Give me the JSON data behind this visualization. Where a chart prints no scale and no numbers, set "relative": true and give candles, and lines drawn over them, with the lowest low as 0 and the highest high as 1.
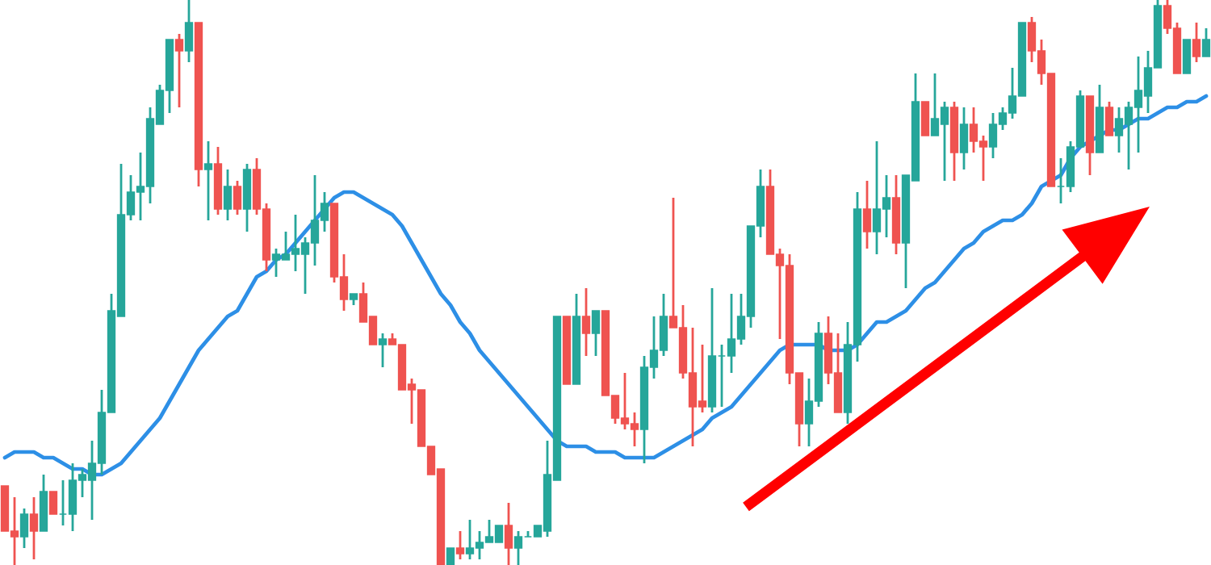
{
  "chart_data": {
    "type": "candlestick",
    "relative": true,
    "tick_labels": false,
    "categories": [
      null,
      null,
      null,
      null,
      null,
      null,
      null,
      null,
      null,
      null,
      null,
      null,
      null,
      null,
      null,
      null,
      null,
      null,
      null,
      null,
      null,
      null,
      null,
      null,
      null,
      null,
      null,
      null,
      null,
      null,
      null,
      null,
      null,
      null,
      null,
      null,
      null,
      null,
      null,
      null,
      null,
      null,
      null,
      null,
      null,
      null,
      null,
      null,
      null,
      null,
      null,
      null,
      null,
      null,
      null,
      null,
      null,
      null,
      null,
      null,
      null,
      null,
      null,
      null,
      null,
      null,
      null,
      null,
      null,
      null,
      null,
      null,
      null,
      null,
      null,
      null,
      null,
      null,
      null,
      null,
      null,
      null,
      null,
      null,
      null,
      null,
      null,
      null,
      null,
      null,
      null,
      null,
      null,
      null,
      null,
      null,
      null,
      null,
      null,
      null,
      null,
      null,
      null,
      null,
      null,
      null,
      null,
      null,
      null,
      null,
      null,
      null,
      null,
      null,
      null,
      null,
      null,
      null,
      null,
      null,
      null,
      null,
      null,
      null,
      null
    ],
    "ohlc": [
      [
        0.14,
        0.14,
        0.06,
        0.06
      ],
      [
        0.06,
        0.12,
        0.0,
        0.05
      ],
      [
        0.05,
        0.1,
        0.03,
        0.09
      ],
      [
        0.09,
        0.12,
        0.01,
        0.06
      ],
      [
        0.06,
        0.16,
        0.06,
        0.13
      ],
      [
        0.13,
        0.13,
        0.09,
        0.09
      ],
      [
        0.09,
        0.15,
        0.07,
        0.09
      ],
      [
        0.09,
        0.18,
        0.06,
        0.15
      ],
      [
        0.15,
        0.17,
        0.12,
        0.16
      ],
      [
        0.15,
        0.22,
        0.08,
        0.18
      ],
      [
        0.18,
        0.31,
        0.16,
        0.27
      ],
      [
        0.27,
        0.48,
        0.27,
        0.45
      ],
      [
        0.44,
        0.71,
        0.44,
        0.62
      ],
      [
        0.62,
        0.69,
        0.61,
        0.66
      ],
      [
        0.66,
        0.73,
        0.61,
        0.67
      ],
      [
        0.67,
        0.81,
        0.64,
        0.79
      ],
      [
        0.78,
        0.85,
        0.78,
        0.84
      ],
      [
        0.84,
        0.93,
        0.8,
        0.93
      ],
      [
        0.93,
        0.94,
        0.81,
        0.91
      ],
      [
        0.91,
        1.0,
        0.89,
        0.96
      ],
      [
        0.96,
        0.96,
        0.67,
        0.7
      ],
      [
        0.7,
        0.75,
        0.61,
        0.71
      ],
      [
        0.71,
        0.74,
        0.62,
        0.63
      ],
      [
        0.63,
        0.7,
        0.61,
        0.67
      ],
      [
        0.67,
        0.68,
        0.62,
        0.63
      ],
      [
        0.63,
        0.71,
        0.59,
        0.7
      ],
      [
        0.7,
        0.72,
        0.62,
        0.63
      ],
      [
        0.63,
        0.64,
        0.52,
        0.54
      ],
      [
        0.54,
        0.56,
        0.51,
        0.55
      ],
      [
        0.54,
        0.59,
        0.54,
        0.55
      ],
      [
        0.55,
        0.62,
        0.52,
        0.56
      ],
      [
        0.55,
        0.58,
        0.48,
        0.57
      ],
      [
        0.57,
        0.69,
        0.53,
        0.61
      ],
      [
        0.61,
        0.66,
        0.59,
        0.64
      ],
      [
        0.64,
        0.64,
        0.5,
        0.51
      ],
      [
        0.51,
        0.55,
        0.45,
        0.47
      ],
      [
        0.47,
        0.48,
        0.46,
        0.48
      ],
      [
        0.48,
        0.5,
        0.43,
        0.43
      ],
      [
        0.44,
        0.44,
        0.39,
        0.39
      ],
      [
        0.39,
        0.41,
        0.35,
        0.4
      ],
      [
        0.4,
        0.41,
        0.39,
        0.39
      ],
      [
        0.39,
        0.39,
        0.31,
        0.31
      ],
      [
        0.32,
        0.33,
        0.25,
        0.31
      ],
      [
        0.31,
        0.31,
        0.21,
        0.21
      ],
      [
        0.21,
        0.21,
        0.16,
        0.16
      ],
      [
        0.17,
        0.17,
        0.0,
        0.0
      ],
      [
        0.0,
        0.03,
        0.0,
        0.03
      ],
      [
        0.03,
        0.06,
        0.01,
        0.02
      ],
      [
        0.02,
        0.08,
        0.01,
        0.03
      ],
      [
        0.03,
        0.06,
        0.01,
        0.04
      ],
      [
        0.04,
        0.08,
        0.04,
        0.05
      ],
      [
        0.04,
        0.07,
        0.04,
        0.07
      ],
      [
        0.07,
        0.11,
        0.0,
        0.03
      ],
      [
        0.03,
        0.06,
        0.0,
        0.05
      ],
      [
        0.05,
        0.06,
        0.05,
        0.05
      ],
      [
        0.05,
        0.07,
        0.05,
        0.07
      ],
      [
        0.06,
        0.22,
        0.05,
        0.16
      ],
      [
        0.15,
        0.44,
        0.15,
        0.44
      ],
      [
        0.44,
        0.44,
        0.32,
        0.32
      ],
      [
        0.32,
        0.48,
        0.32,
        0.44
      ],
      [
        0.44,
        0.49,
        0.37,
        0.41
      ],
      [
        0.41,
        0.45,
        0.37,
        0.45
      ],
      [
        0.45,
        0.45,
        0.3,
        0.3
      ],
      [
        0.3,
        0.3,
        0.25,
        0.26
      ],
      [
        0.26,
        0.34,
        0.24,
        0.25
      ],
      [
        0.25,
        0.27,
        0.21,
        0.24
      ],
      [
        0.24,
        0.37,
        0.18,
        0.35
      ],
      [
        0.35,
        0.44,
        0.33,
        0.38
      ],
      [
        0.38,
        0.48,
        0.37,
        0.44
      ],
      [
        0.44,
        0.65,
        0.42,
        0.42
      ],
      [
        0.42,
        0.46,
        0.33,
        0.34
      ],
      [
        0.34,
        0.42,
        0.21,
        0.28
      ],
      [
        0.29,
        0.39,
        0.27,
        0.28
      ],
      [
        0.28,
        0.49,
        0.27,
        0.37
      ],
      [
        0.37,
        0.39,
        0.28,
        0.37
      ],
      [
        0.37,
        0.48,
        0.34,
        0.4
      ],
      [
        0.4,
        0.48,
        0.39,
        0.44
      ],
      [
        0.44,
        0.6,
        0.42,
        0.6
      ],
      [
        0.6,
        0.7,
        0.58,
        0.67
      ],
      [
        0.67,
        0.7,
        0.55,
        0.55
      ],
      [
        0.55,
        0.56,
        0.4,
        0.53
      ],
      [
        0.53,
        0.55,
        0.32,
        0.34
      ],
      [
        0.34,
        0.34,
        0.21,
        0.25
      ],
      [
        0.25,
        0.33,
        0.21,
        0.29
      ],
      [
        0.29,
        0.43,
        0.28,
        0.41
      ],
      [
        0.41,
        0.44,
        0.32,
        0.34
      ],
      [
        0.34,
        0.41,
        0.27,
        0.27
      ],
      [
        0.27,
        0.43,
        0.25,
        0.39
      ],
      [
        0.39,
        0.66,
        0.36,
        0.63
      ],
      [
        0.63,
        0.68,
        0.56,
        0.59
      ],
      [
        0.59,
        0.75,
        0.55,
        0.63
      ],
      [
        0.63,
        0.69,
        0.58,
        0.65
      ],
      [
        0.65,
        0.69,
        0.55,
        0.57
      ],
      [
        0.57,
        0.69,
        0.49,
        0.69
      ],
      [
        0.68,
        0.87,
        0.68,
        0.82
      ],
      [
        0.82,
        0.82,
        0.76,
        0.76
      ],
      [
        0.76,
        0.87,
        0.76,
        0.79
      ],
      [
        0.78,
        0.82,
        0.68,
        0.81
      ],
      [
        0.81,
        0.82,
        0.68,
        0.73
      ],
      [
        0.73,
        0.81,
        0.7,
        0.78
      ],
      [
        0.78,
        0.81,
        0.73,
        0.75
      ],
      [
        0.75,
        0.76,
        0.68,
        0.74
      ],
      [
        0.74,
        0.8,
        0.72,
        0.78
      ],
      [
        0.78,
        0.81,
        0.77,
        0.8
      ],
      [
        0.8,
        0.88,
        0.79,
        0.83
      ],
      [
        0.83,
        0.96,
        0.83,
        0.96
      ],
      [
        0.96,
        0.97,
        0.89,
        0.91
      ],
      [
        0.91,
        0.93,
        0.85,
        0.87
      ],
      [
        0.87,
        0.87,
        0.67,
        0.67
      ],
      [
        0.67,
        0.72,
        0.64,
        0.67
      ],
      [
        0.67,
        0.75,
        0.66,
        0.74
      ],
      [
        0.74,
        0.84,
        0.74,
        0.83
      ],
      [
        0.83,
        0.83,
        0.69,
        0.73
      ],
      [
        0.73,
        0.85,
        0.73,
        0.81
      ],
      [
        0.81,
        0.82,
        0.76,
        0.76
      ],
      [
        0.76,
        0.81,
        0.73,
        0.79
      ],
      [
        0.78,
        0.82,
        0.7,
        0.81
      ],
      [
        0.81,
        0.9,
        0.73,
        0.84
      ],
      [
        0.83,
        0.91,
        0.8,
        0.88
      ],
      [
        0.88,
        1.0,
        0.88,
        0.99
      ],
      [
        0.99,
        1.0,
        0.94,
        0.95
      ],
      [
        0.95,
        0.96,
        0.87,
        0.87
      ],
      [
        0.87,
        0.93,
        0.87,
        0.93
      ],
      [
        0.93,
        0.96,
        0.89,
        0.9
      ],
      [
        0.9,
        0.95,
        0.9,
        0.93
      ]
    ],
    "colors": [
      "#ef5350",
      "#ef5350",
      "#26a69a",
      "#ef5350",
      "#26a69a",
      "#ef5350",
      "#26a69a",
      "#26a69a",
      "#26a69a",
      "#26a69a",
      "#26a69a",
      "#26a69a",
      "#26a69a",
      "#26a69a",
      "#26a69a",
      "#26a69a",
      "#26a69a",
      "#26a69a",
      "#ef5350",
      "#26a69a",
      "#ef5350",
      "#26a69a",
      "#ef5350",
      "#26a69a",
      "#ef5350",
      "#26a69a",
      "#ef5350",
      "#ef5350",
      "#26a69a",
      "#26a69a",
      "#26a69a",
      "#26a69a",
      "#26a69a",
      "#26a69a",
      "#ef5350",
      "#ef5350",
      "#26a69a",
      "#ef5350",
      "#ef5350",
      "#26a69a",
      "#ef5350",
      "#ef5350",
      "#ef5350",
      "#ef5350",
      "#ef5350",
      "#ef5350",
      "#26a69a",
      "#ef5350",
      "#26a69a",
      "#26a69a",
      "#26a69a",
      "#26a69a",
      "#ef5350",
      "#26a69a",
      "#26a69a",
      "#26a69a",
      "#26a69a",
      "#26a69a",
      "#ef5350",
      "#26a69a",
      "#ef5350",
      "#26a69a",
      "#ef5350",
      "#ef5350",
      "#ef5350",
      "#ef5350",
      "#26a69a",
      "#26a69a",
      "#26a69a",
      "#ef5350",
      "#ef5350",
      "#ef5350",
      "#ef5350",
      "#26a69a",
      "#26a69a",
      "#26a69a",
      "#26a69a",
      "#26a69a",
      "#26a69a",
      "#ef5350",
      "#ef5350",
      "#ef5350",
      "#ef5350",
      "#26a69a",
      "#26a69a",
      "#ef5350",
      "#ef5350",
      "#26a69a",
      "#26a69a",
      "#ef5350",
      "#26a69a",
      "#26a69a",
      "#ef5350",
      "#26a69a",
      "#26a69a",
      "#ef5350",
      "#26a69a",
      "#26a69a",
      "#ef5350",
      "#26a69a",
      "#ef5350",
      "#ef5350",
      "#26a69a",
      "#26a69a",
      "#26a69a",
      "#26a69a",
      "#ef5350",
      "#ef5350",
      "#ef5350",
      "#26a69a",
      "#26a69a",
      "#26a69a",
      "#ef5350",
      "#26a69a",
      "#ef5350",
      "#26a69a",
      "#26a69a",
      "#26a69a",
      "#26a69a",
      "#26a69a",
      "#ef5350",
      "#ef5350",
      "#26a69a",
      "#ef5350",
      "#26a69a"
    ],
    "series": [
      {
        "type": "line",
        "color": "#2d8fe6",
        "values": [
          0.19,
          0.2,
          0.2,
          0.2,
          0.19,
          0.19,
          0.18,
          0.17,
          0.17,
          0.16,
          0.16,
          0.17,
          0.18,
          0.2,
          0.22,
          0.24,
          0.26,
          0.29,
          0.32,
          0.35,
          0.38,
          0.4,
          0.42,
          0.44,
          0.45,
          0.48,
          0.51,
          0.52,
          0.54,
          0.55,
          0.57,
          0.59,
          0.61,
          0.63,
          0.65,
          0.66,
          0.66,
          0.65,
          0.64,
          0.63,
          0.62,
          0.6,
          0.57,
          0.54,
          0.51,
          0.48,
          0.46,
          0.43,
          0.41,
          0.38,
          0.36,
          0.34,
          0.32,
          0.3,
          0.28,
          0.26,
          0.24,
          0.22,
          0.21,
          0.21,
          0.21,
          0.2,
          0.2,
          0.2,
          0.19,
          0.19,
          0.19,
          0.19,
          0.2,
          0.21,
          0.22,
          0.23,
          0.24,
          0.26,
          0.27,
          0.28,
          0.3,
          0.32,
          0.34,
          0.36,
          0.38,
          0.39,
          0.39,
          0.39,
          0.39,
          0.38,
          0.38,
          0.38,
          0.39,
          0.41,
          0.43,
          0.43,
          0.44,
          0.45,
          0.47,
          0.49,
          0.5,
          0.52,
          0.54,
          0.56,
          0.57,
          0.59,
          0.6,
          0.61,
          0.61,
          0.62,
          0.64,
          0.67,
          0.68,
          0.69,
          0.72,
          0.74,
          0.75,
          0.76,
          0.77,
          0.77,
          0.78,
          0.79,
          0.79,
          0.8,
          0.81,
          0.81,
          0.82,
          0.82,
          0.83
        ]
      }
    ]
  }
}
